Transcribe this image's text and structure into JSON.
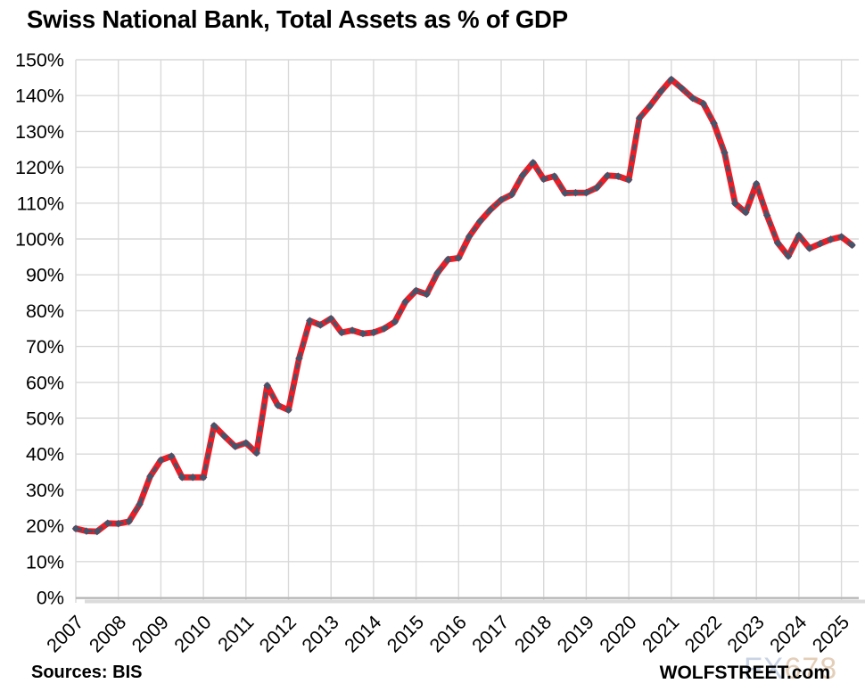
{
  "chart_data": {
    "type": "line",
    "title": "Swiss National Bank, Total Assets as % of GDP",
    "source_note": "Sources: BIS",
    "branding": "WOLFSTREET.com",
    "watermark": {
      "text": "FX678",
      "part1": "FX",
      "part2": "678"
    },
    "x_axis": {
      "tick_labels": [
        "2007",
        "2008",
        "2009",
        "2010",
        "2011",
        "2012",
        "2013",
        "2014",
        "2015",
        "2016",
        "2017",
        "2018",
        "2019",
        "2020",
        "2021",
        "2022",
        "2023",
        "2024",
        "2025"
      ],
      "start": "2007-Q1",
      "frequency": "quarterly",
      "label_rotation_deg": -45
    },
    "y_axis": {
      "min": 0,
      "max": 150,
      "step": 10,
      "tick_labels": [
        "0%",
        "10%",
        "20%",
        "30%",
        "40%",
        "50%",
        "60%",
        "70%",
        "80%",
        "90%",
        "100%",
        "110%",
        "120%",
        "130%",
        "140%",
        "150%"
      ]
    },
    "grid": {
      "line_color": "#D9D9D9",
      "axis_color": "#B3B3B3",
      "axis_shadow_color": "#DBDBDB",
      "grid_on": true
    },
    "legend": {
      "shown": false
    },
    "series": [
      {
        "line_color": "#EE1C25",
        "marker_color": "#44546A",
        "style": "thick red line with navy dashed overlay and diamond markers",
        "values": [
          19.2,
          18.5,
          18.4,
          20.7,
          20.6,
          21.2,
          26.0,
          33.8,
          38.3,
          39.4,
          33.5,
          33.5,
          33.5,
          47.9,
          44.9,
          42.1,
          43.1,
          40.3,
          59.1,
          53.6,
          52.3,
          66.7,
          77.2,
          76.0,
          77.8,
          73.9,
          74.5,
          73.6,
          73.9,
          75.0,
          76.9,
          82.5,
          85.6,
          84.6,
          90.5,
          94.3,
          94.7,
          100.7,
          104.9,
          108.2,
          110.9,
          112.4,
          117.7,
          121.3,
          116.7,
          117.5,
          112.8,
          112.9,
          112.9,
          114.3,
          117.7,
          117.5,
          116.5,
          133.7,
          137.2,
          141.1,
          144.5,
          142.0,
          139.3,
          137.8,
          132.3,
          124.1,
          109.9,
          107.4,
          115.4,
          106.6,
          98.9,
          95.2,
          101.0,
          97.4,
          98.7,
          99.9,
          100.6,
          98.3
        ]
      }
    ]
  }
}
